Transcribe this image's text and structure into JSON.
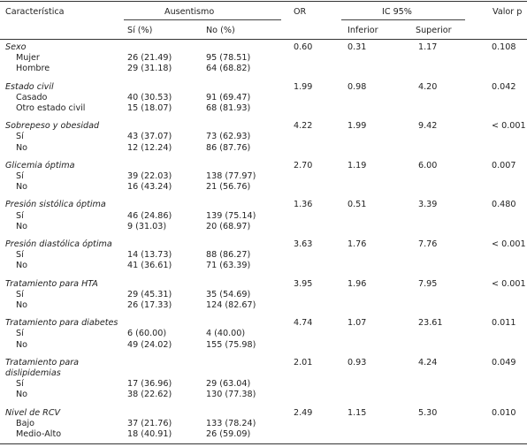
{
  "header": {
    "caracteristica": "Característica",
    "ausentismo": "Ausentismo",
    "or": "OR",
    "ic": "IC 95%",
    "valor_p": "Valor p",
    "si": "Sí (%)",
    "no": "No (%)",
    "inferior": "Inferior",
    "superior": "Superior"
  },
  "groups": [
    {
      "title": [
        "Sexo"
      ],
      "or": "0.60",
      "inf": "0.31",
      "sup": "1.17",
      "p": "0.108",
      "rows": [
        {
          "label": "Mujer",
          "si": "26 (21.49)",
          "no": "95 (78.51)"
        },
        {
          "label": "Hombre",
          "si": "29 (31.18)",
          "no": "64 (68.82)"
        }
      ]
    },
    {
      "title": [
        "Estado civil"
      ],
      "or": "1.99",
      "inf": "0.98",
      "sup": "4.20",
      "p": "0.042",
      "rows": [
        {
          "label": "Casado",
          "si": "40 (30.53)",
          "no": "91 (69.47)"
        },
        {
          "label": "Otro estado civil",
          "si": "15 (18.07)",
          "no": "68 (81.93)"
        }
      ]
    },
    {
      "title": [
        "Sobrepeso y obesidad"
      ],
      "or": "4.22",
      "inf": "1.99",
      "sup": "9.42",
      "p": "< 0.001",
      "rows": [
        {
          "label": "Sí",
          "si": "43 (37.07)",
          "no": "73 (62.93)"
        },
        {
          "label": "No",
          "si": "12 (12.24)",
          "no": "86 (87.76)"
        }
      ]
    },
    {
      "title": [
        "Glicemia óptima"
      ],
      "or": "2.70",
      "inf": "1.19",
      "sup": "6.00",
      "p": "0.007",
      "rows": [
        {
          "label": "Sí",
          "si": "39 (22.03)",
          "no": "138 (77.97)"
        },
        {
          "label": "No",
          "si": "16 (43.24)",
          "no": "21 (56.76)"
        }
      ]
    },
    {
      "title": [
        "Presión sistólica óptima"
      ],
      "or": "1.36",
      "inf": "0.51",
      "sup": "3.39",
      "p": "0.480",
      "rows": [
        {
          "label": "Sí",
          "si": "46 (24.86)",
          "no": "139 (75.14)"
        },
        {
          "label": "No",
          "si": "9 (31.03)",
          "no": "20 (68.97)"
        }
      ]
    },
    {
      "title": [
        "Presión diastólica óptima"
      ],
      "or": "3.63",
      "inf": "1.76",
      "sup": "7.76",
      "p": "< 0.001",
      "rows": [
        {
          "label": "Sí",
          "si": "14 (13.73)",
          "no": "88 (86.27)"
        },
        {
          "label": "No",
          "si": "41 (36.61)",
          "no": "71 (63.39)"
        }
      ]
    },
    {
      "title": [
        "Tratamiento para HTA"
      ],
      "or": "3.95",
      "inf": "1.96",
      "sup": "7.95",
      "p": "< 0.001",
      "rows": [
        {
          "label": "Sí",
          "si": "29 (45.31)",
          "no": "35 (54.69)"
        },
        {
          "label": "No",
          "si": "26 (17.33)",
          "no": "124 (82.67)"
        }
      ]
    },
    {
      "title": [
        "Tratamiento para diabetes"
      ],
      "or": "4.74",
      "inf": "1.07",
      "sup": "23.61",
      "p": "0.011",
      "rows": [
        {
          "label": "Sí",
          "si": "6 (60.00)",
          "no": "4 (40.00)"
        },
        {
          "label": "No",
          "si": "49 (24.02)",
          "no": "155 (75.98)"
        }
      ]
    },
    {
      "title": [
        "Tratamiento para",
        "dislipidemias"
      ],
      "or": "2.01",
      "inf": "0.93",
      "sup": "4.24",
      "p": "0.049",
      "rows": [
        {
          "label": "Sí",
          "si": "17 (36.96)",
          "no": "29 (63.04)"
        },
        {
          "label": "No",
          "si": "38 (22.62)",
          "no": "130 (77.38)"
        }
      ]
    },
    {
      "title": [
        "Nivel de RCV"
      ],
      "or": "2.49",
      "inf": "1.15",
      "sup": "5.30",
      "p": "0.010",
      "rows": [
        {
          "label": "Bajo",
          "si": "37 (21.76)",
          "no": "133 (78.24)"
        },
        {
          "label": "Medio-Alto",
          "si": "18 (40.91)",
          "no": "26 (59.09)"
        }
      ]
    }
  ]
}
